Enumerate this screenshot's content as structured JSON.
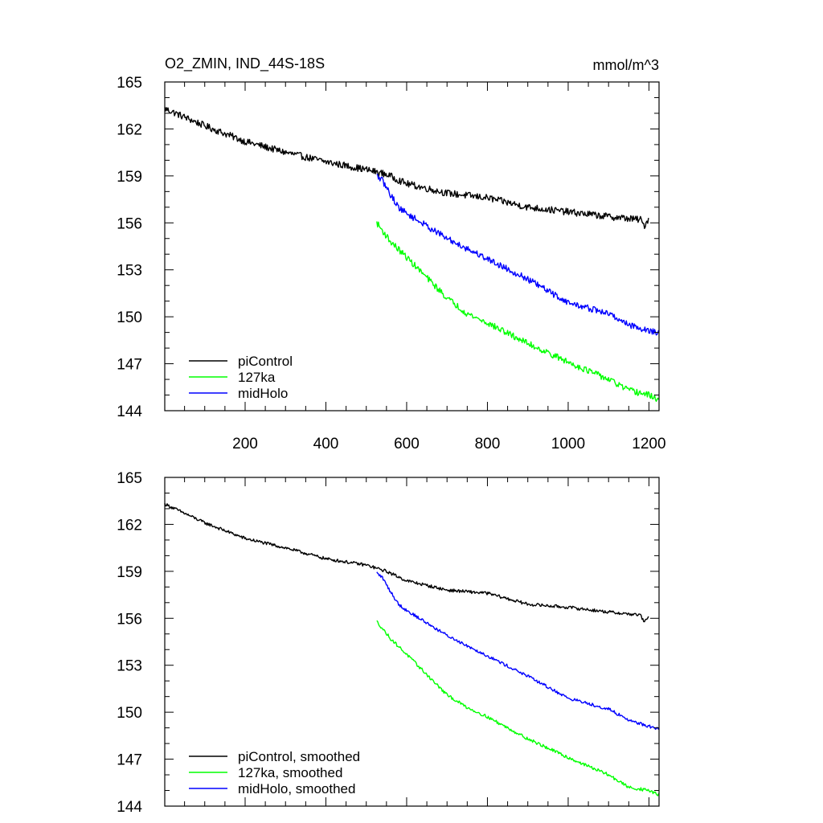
{
  "chart_data": [
    {
      "type": "line",
      "title": "O2_ZMIN, IND_44S-18S",
      "units": "mmol/m^3",
      "xlim": [
        1,
        1225
      ],
      "ylim": [
        144,
        165
      ],
      "xticks": [
        200,
        400,
        600,
        800,
        1000,
        1200
      ],
      "yticks": [
        144,
        147,
        150,
        153,
        156,
        159,
        162,
        165
      ],
      "show_xtick_labels": true,
      "legend_position": "bottom-left",
      "series": [
        {
          "name": "piControl",
          "color": "#000000",
          "noise": 0.22,
          "x": [
            1,
            100,
            200,
            300,
            400,
            500,
            550,
            600,
            700,
            800,
            900,
            1000,
            1100,
            1180,
            1188,
            1200
          ],
          "y": [
            163.3,
            162.2,
            161.2,
            160.5,
            159.9,
            159.4,
            159.1,
            158.5,
            157.9,
            157.6,
            157.0,
            156.7,
            156.4,
            156.2,
            155.8,
            156.3
          ]
        },
        {
          "name": "127ka",
          "color": "#00ff00",
          "noise": 0.2,
          "x": [
            526,
            560,
            600,
            650,
            700,
            750,
            800,
            900,
            1000,
            1100,
            1150,
            1200,
            1225
          ],
          "y": [
            156.0,
            154.8,
            153.8,
            152.5,
            151.2,
            150.2,
            149.6,
            148.3,
            147.1,
            146.0,
            145.3,
            145.0,
            144.7
          ]
        },
        {
          "name": "midHolo",
          "color": "#0000ff",
          "noise": 0.2,
          "x": [
            526,
            540,
            560,
            580,
            600,
            650,
            700,
            800,
            900,
            1000,
            1100,
            1150,
            1200,
            1225
          ],
          "y": [
            159.0,
            158.7,
            157.8,
            157.0,
            156.6,
            155.8,
            155.0,
            153.7,
            152.4,
            150.9,
            150.2,
            149.5,
            149.1,
            149.0
          ]
        }
      ]
    },
    {
      "type": "line",
      "title": "",
      "units": "",
      "xlim": [
        1,
        1225
      ],
      "ylim": [
        144,
        165
      ],
      "xticks": [
        200,
        400,
        600,
        800,
        1000,
        1200
      ],
      "yticks": [
        144,
        147,
        150,
        153,
        156,
        159,
        162,
        165
      ],
      "show_xtick_labels": false,
      "legend_position": "bottom-left",
      "series": [
        {
          "name": "piControl, smoothed",
          "color": "#000000",
          "noise": 0.1,
          "x": [
            1,
            100,
            200,
            300,
            400,
            500,
            550,
            600,
            700,
            800,
            900,
            1000,
            1100,
            1180,
            1188,
            1200
          ],
          "y": [
            163.3,
            162.1,
            161.1,
            160.5,
            159.8,
            159.4,
            159.0,
            158.4,
            157.8,
            157.6,
            156.9,
            156.7,
            156.4,
            156.2,
            155.7,
            156.2
          ]
        },
        {
          "name": "127ka, smoothed",
          "color": "#00ff00",
          "noise": 0.1,
          "x": [
            526,
            560,
            600,
            650,
            700,
            750,
            800,
            900,
            1000,
            1100,
            1150,
            1200,
            1225
          ],
          "y": [
            155.8,
            154.7,
            153.7,
            152.4,
            151.1,
            150.3,
            149.7,
            148.3,
            147.1,
            146.0,
            145.2,
            145.0,
            144.7
          ]
        },
        {
          "name": "midHolo, smoothed",
          "color": "#0000ff",
          "noise": 0.1,
          "x": [
            526,
            540,
            560,
            580,
            600,
            650,
            700,
            800,
            900,
            1000,
            1100,
            1150,
            1200,
            1225
          ],
          "y": [
            158.9,
            158.6,
            157.7,
            156.9,
            156.5,
            155.7,
            154.9,
            153.6,
            152.3,
            150.9,
            150.2,
            149.5,
            149.1,
            148.9
          ]
        }
      ]
    }
  ]
}
